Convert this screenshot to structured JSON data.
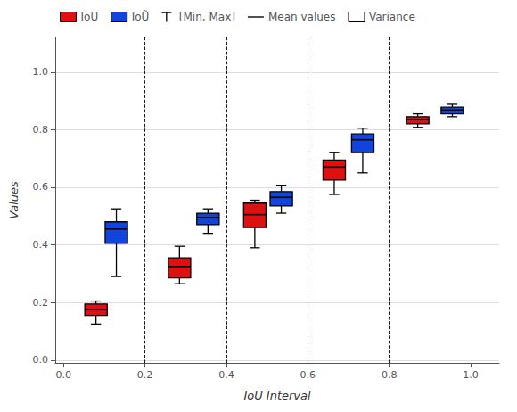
{
  "chart_data": {
    "type": "box",
    "xlabel": "IoU Interval",
    "ylabel": "Values",
    "xlim": [
      -0.02,
      1.07
    ],
    "ylim": [
      -0.01,
      1.12
    ],
    "xticks": [
      {
        "value": 0.0,
        "label": "0.0"
      },
      0.2,
      0.4,
      0.6,
      0.8,
      {
        "value": 1.0,
        "label": "1.0"
      }
    ],
    "yticks": [
      {
        "value": 0.0,
        "label": "0.0"
      },
      0.2,
      0.4,
      0.6,
      0.8,
      {
        "value": 1.0,
        "label": "1.0"
      }
    ],
    "vlines": [
      0.2,
      0.4,
      0.6,
      0.8
    ],
    "grid": "y",
    "legend": "upper left",
    "series": [
      {
        "name": "IoU",
        "type": "box",
        "color": "#DD1111",
        "x": [
          0.08,
          0.285,
          0.47,
          0.665,
          0.87
        ],
        "values": [
          [
            0.125,
            0.155,
            0.175,
            0.195,
            0.205
          ],
          [
            0.265,
            0.285,
            0.325,
            0.355,
            0.395
          ],
          [
            0.39,
            0.46,
            0.505,
            0.545,
            0.555
          ],
          [
            0.575,
            0.625,
            0.67,
            0.695,
            0.72
          ],
          [
            0.808,
            0.82,
            0.835,
            0.845,
            0.855
          ]
        ]
      },
      {
        "name": "IoŨ",
        "type": "box",
        "color": "#1144DD",
        "x": [
          0.13,
          0.355,
          0.535,
          0.735,
          0.955
        ],
        "values": [
          [
            0.29,
            0.405,
            0.455,
            0.48,
            0.525
          ],
          [
            0.44,
            0.47,
            0.495,
            0.51,
            0.525
          ],
          [
            0.51,
            0.535,
            0.565,
            0.585,
            0.605
          ],
          [
            0.65,
            0.72,
            0.765,
            0.785,
            0.805
          ],
          [
            0.845,
            0.855,
            0.868,
            0.878,
            0.888
          ]
        ]
      },
      {
        "name": "[Min, Max]",
        "type": "legend",
        "marker": "whisker"
      },
      {
        "name": "Mean values",
        "type": "legend",
        "line_style": "solid"
      },
      {
        "name": "Variance",
        "type": "legend",
        "marker": "box"
      }
    ]
  }
}
